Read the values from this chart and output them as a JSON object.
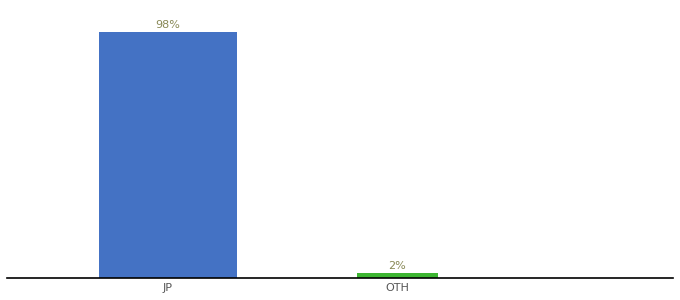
{
  "categories": [
    "JP",
    "OTH"
  ],
  "values": [
    98,
    2
  ],
  "bar_colors": [
    "#4472C4",
    "#3CB531"
  ],
  "label_colors": [
    "#888855",
    "#888855"
  ],
  "labels": [
    "98%",
    "2%"
  ],
  "ylim": [
    0,
    108
  ],
  "background_color": "#ffffff",
  "axis_line_color": "#000000",
  "tick_label_color": "#555555",
  "label_fontsize": 8,
  "tick_fontsize": 8
}
